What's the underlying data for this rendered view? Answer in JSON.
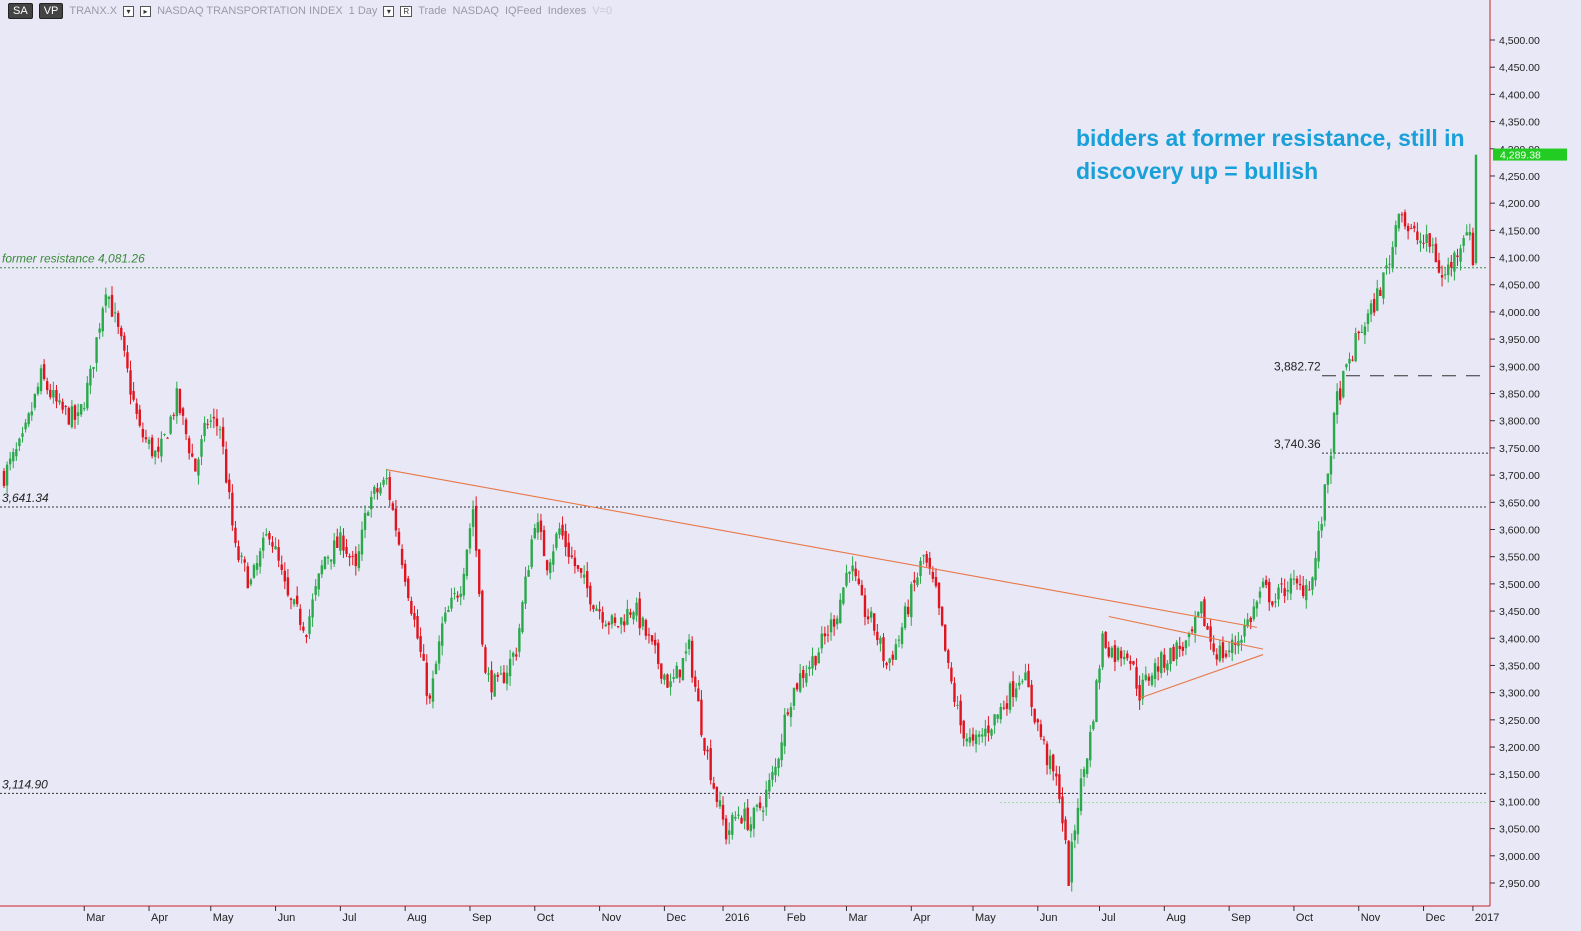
{
  "toolbar": {
    "sa_label": "SA",
    "vp_label": "VP",
    "symbol": "TRANX.X",
    "instrument_name": "NASDAQ TRANSPORTATION INDEX",
    "interval": "1 Day",
    "mode_label": "R",
    "trade_label": "Trade",
    "exchange": "NASDAQ",
    "feed": "IQFeed",
    "category": "Indexes",
    "volume_label": "V=0"
  },
  "annotation": {
    "line1": "bidders at former resistance, still in",
    "line2": "discovery up = bullish"
  },
  "colors": {
    "background": "#e8e8f6",
    "up_candle": "#2aa84a",
    "down_candle": "#e0141e",
    "trendline": "#e87848",
    "resistance_line": "#3a8a3a",
    "level_line": "#333333",
    "price_badge": "#22cc22",
    "annotation_text": "#1aa0d8"
  },
  "chart_data": {
    "type": "candlestick",
    "title": "NASDAQ TRANSPORTATION INDEX",
    "symbol": "TRANX.X",
    "ylim": [
      2920,
      4530
    ],
    "grid": false,
    "y_ticks": [
      2950,
      3000,
      3050,
      3100,
      3150,
      3200,
      3250,
      3300,
      3350,
      3400,
      3450,
      3500,
      3550,
      3600,
      3650,
      3700,
      3750,
      3800,
      3850,
      3900,
      3950,
      4000,
      4050,
      4100,
      4150,
      4200,
      4250,
      4300,
      4350,
      4400,
      4450,
      4500
    ],
    "x_labels": [
      "Mar",
      "Apr",
      "May",
      "Jun",
      "Jul",
      "Aug",
      "Sep",
      "Oct",
      "Nov",
      "Dec",
      "2016",
      "Feb",
      "Mar",
      "Apr",
      "May",
      "Jun",
      "Jul",
      "Aug",
      "Sep",
      "Oct",
      "Nov",
      "Dec",
      "2017"
    ],
    "last_price": 4289.38,
    "last_price_label": "4,289.38",
    "price_path": [
      {
        "i": 0,
        "v": 3700
      },
      {
        "i": 6,
        "v": 3760
      },
      {
        "i": 12,
        "v": 3880
      },
      {
        "i": 18,
        "v": 3820
      },
      {
        "i": 24,
        "v": 3800
      },
      {
        "i": 28,
        "v": 3880
      },
      {
        "i": 33,
        "v": 4050
      },
      {
        "i": 38,
        "v": 3940
      },
      {
        "i": 44,
        "v": 3780
      },
      {
        "i": 50,
        "v": 3730
      },
      {
        "i": 56,
        "v": 3840
      },
      {
        "i": 62,
        "v": 3710
      },
      {
        "i": 66,
        "v": 3800
      },
      {
        "i": 70,
        "v": 3790
      },
      {
        "i": 75,
        "v": 3560
      },
      {
        "i": 80,
        "v": 3500
      },
      {
        "i": 86,
        "v": 3600
      },
      {
        "i": 92,
        "v": 3470
      },
      {
        "i": 98,
        "v": 3420
      },
      {
        "i": 104,
        "v": 3550
      },
      {
        "i": 110,
        "v": 3580
      },
      {
        "i": 114,
        "v": 3520
      },
      {
        "i": 118,
        "v": 3650
      },
      {
        "i": 124,
        "v": 3690
      },
      {
        "i": 130,
        "v": 3520
      },
      {
        "i": 134,
        "v": 3400
      },
      {
        "i": 138,
        "v": 3280
      },
      {
        "i": 142,
        "v": 3420
      },
      {
        "i": 148,
        "v": 3500
      },
      {
        "i": 152,
        "v": 3640
      },
      {
        "i": 156,
        "v": 3330
      },
      {
        "i": 160,
        "v": 3310
      },
      {
        "i": 166,
        "v": 3380
      },
      {
        "i": 172,
        "v": 3620
      },
      {
        "i": 176,
        "v": 3540
      },
      {
        "i": 180,
        "v": 3600
      },
      {
        "i": 186,
        "v": 3520
      },
      {
        "i": 192,
        "v": 3460
      },
      {
        "i": 198,
        "v": 3420
      },
      {
        "i": 204,
        "v": 3460
      },
      {
        "i": 210,
        "v": 3380
      },
      {
        "i": 216,
        "v": 3310
      },
      {
        "i": 222,
        "v": 3380
      },
      {
        "i": 226,
        "v": 3240
      },
      {
        "i": 230,
        "v": 3130
      },
      {
        "i": 234,
        "v": 3040
      },
      {
        "i": 238,
        "v": 3080
      },
      {
        "i": 242,
        "v": 3060
      },
      {
        "i": 246,
        "v": 3100
      },
      {
        "i": 250,
        "v": 3160
      },
      {
        "i": 254,
        "v": 3280
      },
      {
        "i": 258,
        "v": 3330
      },
      {
        "i": 262,
        "v": 3360
      },
      {
        "i": 266,
        "v": 3400
      },
      {
        "i": 270,
        "v": 3450
      },
      {
        "i": 274,
        "v": 3540
      },
      {
        "i": 278,
        "v": 3460
      },
      {
        "i": 282,
        "v": 3420
      },
      {
        "i": 286,
        "v": 3350
      },
      {
        "i": 290,
        "v": 3400
      },
      {
        "i": 294,
        "v": 3480
      },
      {
        "i": 298,
        "v": 3550
      },
      {
        "i": 302,
        "v": 3480
      },
      {
        "i": 306,
        "v": 3340
      },
      {
        "i": 310,
        "v": 3240
      },
      {
        "i": 314,
        "v": 3200
      },
      {
        "i": 318,
        "v": 3230
      },
      {
        "i": 322,
        "v": 3260
      },
      {
        "i": 326,
        "v": 3300
      },
      {
        "i": 330,
        "v": 3340
      },
      {
        "i": 334,
        "v": 3260
      },
      {
        "i": 338,
        "v": 3180
      },
      {
        "i": 342,
        "v": 3120
      },
      {
        "i": 345,
        "v": 2960
      },
      {
        "i": 348,
        "v": 3100
      },
      {
        "i": 352,
        "v": 3220
      },
      {
        "i": 356,
        "v": 3400
      },
      {
        "i": 360,
        "v": 3370
      },
      {
        "i": 364,
        "v": 3380
      },
      {
        "i": 368,
        "v": 3300
      },
      {
        "i": 372,
        "v": 3340
      },
      {
        "i": 376,
        "v": 3360
      },
      {
        "i": 380,
        "v": 3380
      },
      {
        "i": 384,
        "v": 3390
      },
      {
        "i": 388,
        "v": 3450
      },
      {
        "i": 392,
        "v": 3380
      },
      {
        "i": 396,
        "v": 3370
      },
      {
        "i": 400,
        "v": 3400
      },
      {
        "i": 404,
        "v": 3440
      },
      {
        "i": 408,
        "v": 3490
      },
      {
        "i": 412,
        "v": 3470
      },
      {
        "i": 416,
        "v": 3500
      },
      {
        "i": 420,
        "v": 3490
      },
      {
        "i": 424,
        "v": 3510
      },
      {
        "i": 427,
        "v": 3620
      },
      {
        "i": 430,
        "v": 3750
      },
      {
        "i": 432,
        "v": 3840
      },
      {
        "i": 435,
        "v": 3890
      },
      {
        "i": 439,
        "v": 3960
      },
      {
        "i": 443,
        "v": 4000
      },
      {
        "i": 447,
        "v": 4060
      },
      {
        "i": 450,
        "v": 4120
      },
      {
        "i": 452,
        "v": 4200
      },
      {
        "i": 455,
        "v": 4150
      },
      {
        "i": 459,
        "v": 4130
      },
      {
        "i": 463,
        "v": 4120
      },
      {
        "i": 466,
        "v": 4060
      },
      {
        "i": 470,
        "v": 4100
      },
      {
        "i": 474,
        "v": 4160
      },
      {
        "i": 476,
        "v": 4100
      },
      {
        "i": 477,
        "v": 4289
      }
    ],
    "levels": [
      {
        "name": "former-resistance",
        "value": 4081.26,
        "label": "former resistance 4,081.26",
        "style": "dotted-green",
        "span": "full"
      },
      {
        "name": "level-3882",
        "value": 3882.72,
        "label": "3,882.72",
        "style": "dashed",
        "span": "right"
      },
      {
        "name": "level-3740",
        "value": 3740.36,
        "label": "3,740.36",
        "style": "dotted",
        "span": "right"
      },
      {
        "name": "level-3641",
        "value": 3641.34,
        "label": "3,641.34",
        "style": "dotted",
        "span": "full"
      },
      {
        "name": "level-3114",
        "value": 3114.9,
        "label": "3,114.90",
        "style": "dotted",
        "span": "full"
      }
    ],
    "trendlines": [
      {
        "name": "long-downtrend",
        "from": {
          "i": 124,
          "v": 3710
        },
        "to": {
          "i": 406,
          "v": 3420
        }
      },
      {
        "name": "triangle-top",
        "from": {
          "i": 358,
          "v": 3440
        },
        "to": {
          "i": 408,
          "v": 3380
        }
      },
      {
        "name": "triangle-bottom",
        "from": {
          "i": 368,
          "v": 3290
        },
        "to": {
          "i": 408,
          "v": 3370
        }
      }
    ]
  }
}
